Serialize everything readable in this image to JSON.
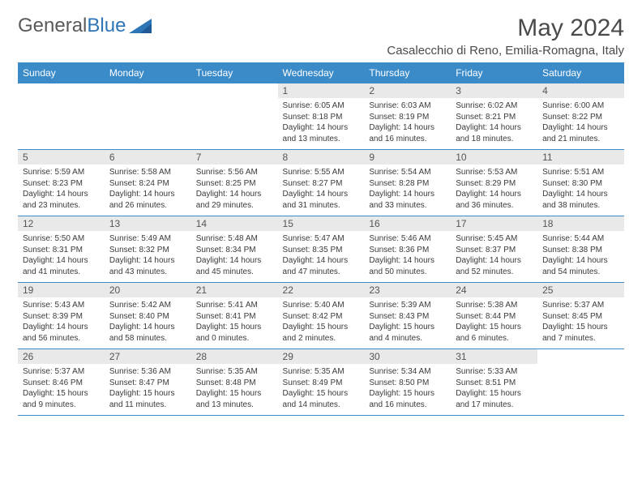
{
  "logo": {
    "text_general": "General",
    "text_blue": "Blue"
  },
  "title": "May 2024",
  "location": "Casalecchio di Reno, Emilia-Romagna, Italy",
  "colors": {
    "header_bg": "#3b8bc9",
    "header_text": "#ffffff",
    "daynum_bg": "#e9e9e9",
    "daynum_text": "#555555",
    "border": "#3b8bc9",
    "body_text": "#3a3a3a",
    "title_text": "#4a4a4a",
    "logo_gray": "#5a5a5a",
    "logo_blue": "#2e75b6"
  },
  "fonts": {
    "title_size": 30,
    "location_size": 15,
    "th_size": 12,
    "daynum_size": 12,
    "cell_size": 10
  },
  "weekdays": [
    "Sunday",
    "Monday",
    "Tuesday",
    "Wednesday",
    "Thursday",
    "Friday",
    "Saturday"
  ],
  "weeks": [
    [
      null,
      null,
      null,
      {
        "n": "1",
        "sunrise": "6:05 AM",
        "sunset": "8:18 PM",
        "daylight": "14 hours and 13 minutes."
      },
      {
        "n": "2",
        "sunrise": "6:03 AM",
        "sunset": "8:19 PM",
        "daylight": "14 hours and 16 minutes."
      },
      {
        "n": "3",
        "sunrise": "6:02 AM",
        "sunset": "8:21 PM",
        "daylight": "14 hours and 18 minutes."
      },
      {
        "n": "4",
        "sunrise": "6:00 AM",
        "sunset": "8:22 PM",
        "daylight": "14 hours and 21 minutes."
      }
    ],
    [
      {
        "n": "5",
        "sunrise": "5:59 AM",
        "sunset": "8:23 PM",
        "daylight": "14 hours and 23 minutes."
      },
      {
        "n": "6",
        "sunrise": "5:58 AM",
        "sunset": "8:24 PM",
        "daylight": "14 hours and 26 minutes."
      },
      {
        "n": "7",
        "sunrise": "5:56 AM",
        "sunset": "8:25 PM",
        "daylight": "14 hours and 29 minutes."
      },
      {
        "n": "8",
        "sunrise": "5:55 AM",
        "sunset": "8:27 PM",
        "daylight": "14 hours and 31 minutes."
      },
      {
        "n": "9",
        "sunrise": "5:54 AM",
        "sunset": "8:28 PM",
        "daylight": "14 hours and 33 minutes."
      },
      {
        "n": "10",
        "sunrise": "5:53 AM",
        "sunset": "8:29 PM",
        "daylight": "14 hours and 36 minutes."
      },
      {
        "n": "11",
        "sunrise": "5:51 AM",
        "sunset": "8:30 PM",
        "daylight": "14 hours and 38 minutes."
      }
    ],
    [
      {
        "n": "12",
        "sunrise": "5:50 AM",
        "sunset": "8:31 PM",
        "daylight": "14 hours and 41 minutes."
      },
      {
        "n": "13",
        "sunrise": "5:49 AM",
        "sunset": "8:32 PM",
        "daylight": "14 hours and 43 minutes."
      },
      {
        "n": "14",
        "sunrise": "5:48 AM",
        "sunset": "8:34 PM",
        "daylight": "14 hours and 45 minutes."
      },
      {
        "n": "15",
        "sunrise": "5:47 AM",
        "sunset": "8:35 PM",
        "daylight": "14 hours and 47 minutes."
      },
      {
        "n": "16",
        "sunrise": "5:46 AM",
        "sunset": "8:36 PM",
        "daylight": "14 hours and 50 minutes."
      },
      {
        "n": "17",
        "sunrise": "5:45 AM",
        "sunset": "8:37 PM",
        "daylight": "14 hours and 52 minutes."
      },
      {
        "n": "18",
        "sunrise": "5:44 AM",
        "sunset": "8:38 PM",
        "daylight": "14 hours and 54 minutes."
      }
    ],
    [
      {
        "n": "19",
        "sunrise": "5:43 AM",
        "sunset": "8:39 PM",
        "daylight": "14 hours and 56 minutes."
      },
      {
        "n": "20",
        "sunrise": "5:42 AM",
        "sunset": "8:40 PM",
        "daylight": "14 hours and 58 minutes."
      },
      {
        "n": "21",
        "sunrise": "5:41 AM",
        "sunset": "8:41 PM",
        "daylight": "15 hours and 0 minutes."
      },
      {
        "n": "22",
        "sunrise": "5:40 AM",
        "sunset": "8:42 PM",
        "daylight": "15 hours and 2 minutes."
      },
      {
        "n": "23",
        "sunrise": "5:39 AM",
        "sunset": "8:43 PM",
        "daylight": "15 hours and 4 minutes."
      },
      {
        "n": "24",
        "sunrise": "5:38 AM",
        "sunset": "8:44 PM",
        "daylight": "15 hours and 6 minutes."
      },
      {
        "n": "25",
        "sunrise": "5:37 AM",
        "sunset": "8:45 PM",
        "daylight": "15 hours and 7 minutes."
      }
    ],
    [
      {
        "n": "26",
        "sunrise": "5:37 AM",
        "sunset": "8:46 PM",
        "daylight": "15 hours and 9 minutes."
      },
      {
        "n": "27",
        "sunrise": "5:36 AM",
        "sunset": "8:47 PM",
        "daylight": "15 hours and 11 minutes."
      },
      {
        "n": "28",
        "sunrise": "5:35 AM",
        "sunset": "8:48 PM",
        "daylight": "15 hours and 13 minutes."
      },
      {
        "n": "29",
        "sunrise": "5:35 AM",
        "sunset": "8:49 PM",
        "daylight": "15 hours and 14 minutes."
      },
      {
        "n": "30",
        "sunrise": "5:34 AM",
        "sunset": "8:50 PM",
        "daylight": "15 hours and 16 minutes."
      },
      {
        "n": "31",
        "sunrise": "5:33 AM",
        "sunset": "8:51 PM",
        "daylight": "15 hours and 17 minutes."
      },
      null
    ]
  ]
}
